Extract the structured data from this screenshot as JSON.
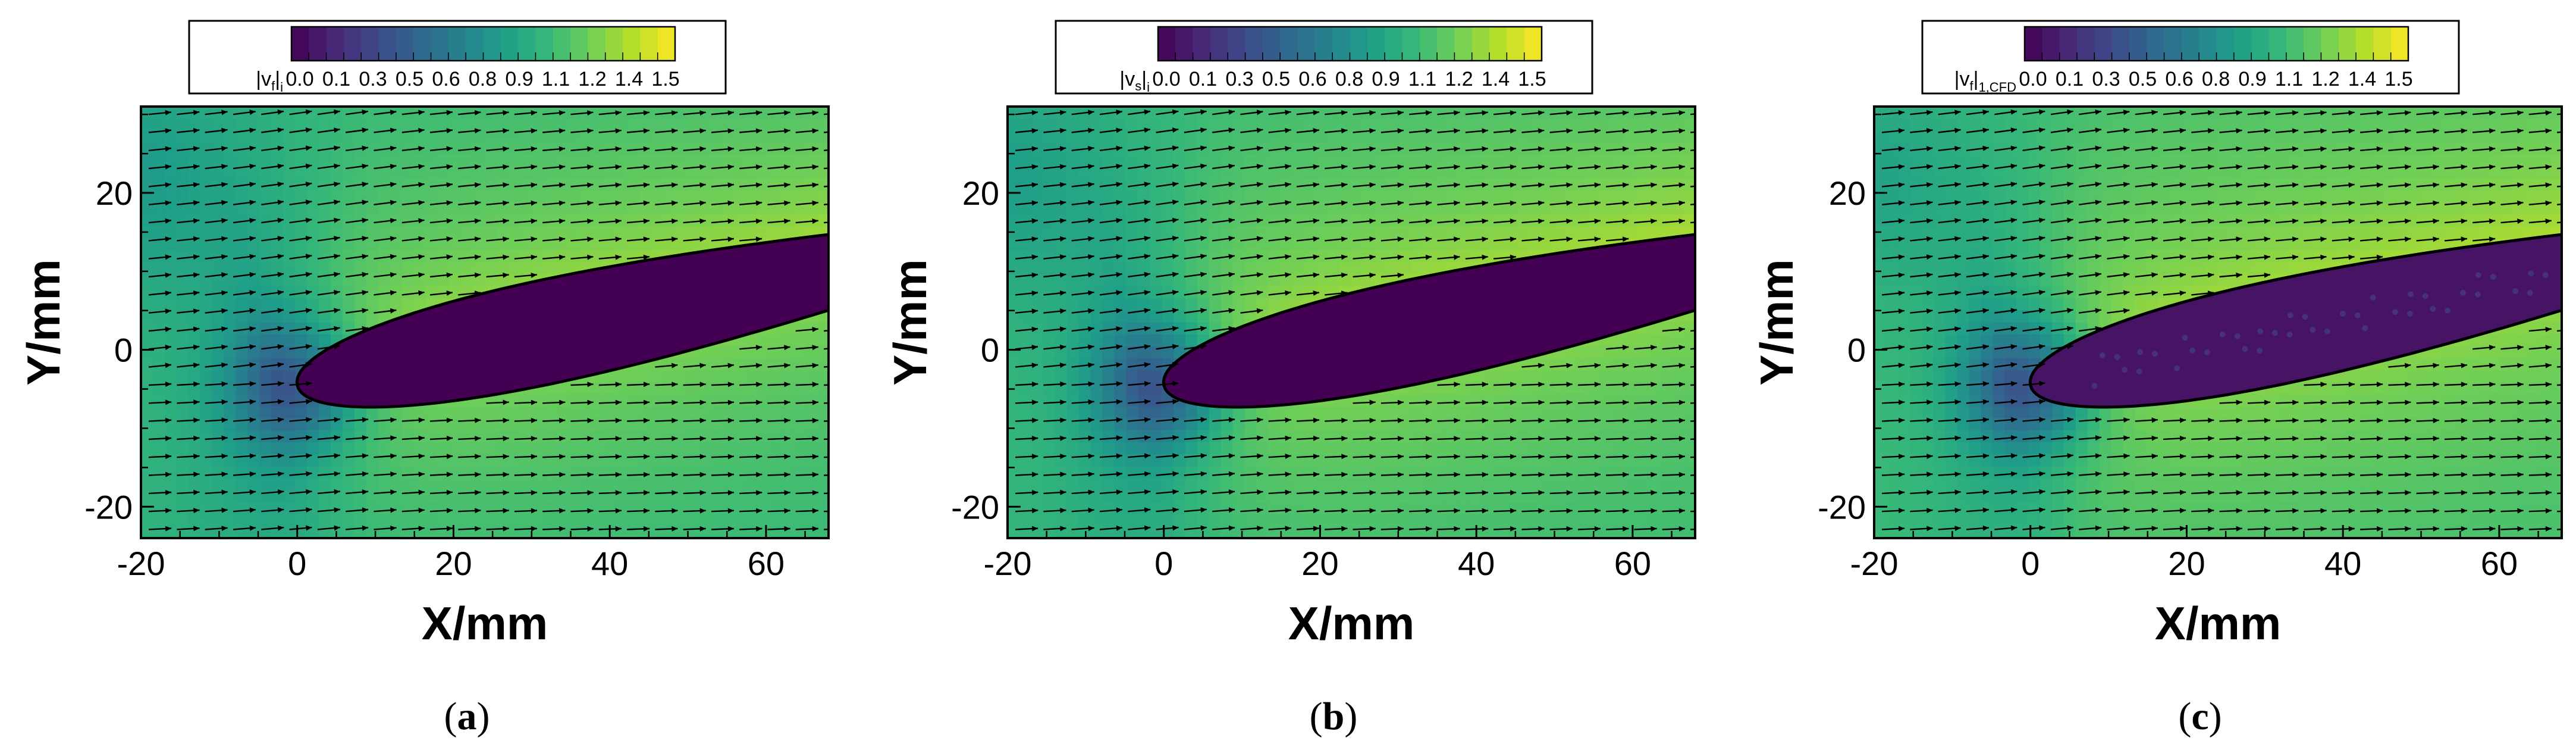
{
  "chart_data": [
    {
      "type": "heatmap",
      "panel": "(a)",
      "caption_letter": "a",
      "colorbar_label_main": "|v",
      "colorbar_label_sub": "f",
      "colorbar_label_tail": "|",
      "colorbar_label_sub2": "i",
      "colorbar_ticks": [
        "0.0",
        "0.1",
        "0.3",
        "0.5",
        "0.6",
        "0.8",
        "0.9",
        "1.1",
        "1.2",
        "1.4",
        "1.5"
      ],
      "colorbar_range": [
        0.0,
        1.55
      ],
      "xlabel": "X/mm",
      "ylabel": "Y/mm",
      "xlim": [
        -20,
        68
      ],
      "ylim": [
        -24,
        31
      ],
      "xticks": [
        -20,
        0,
        20,
        40,
        60
      ],
      "yticks": [
        -20,
        0,
        20
      ],
      "field": {
        "freestream": 1.0,
        "upper_surface_peak": 1.42,
        "stagnation_min": 0.45,
        "airfoil_interior": 0.0
      },
      "airfoil": {
        "leading_edge": [
          0,
          -4.5
        ],
        "chord_angle_deg": 12,
        "visible_chord_mm": 68
      },
      "vector_field": "velocity arrows, uniform spacing",
      "cfd_noise": false
    },
    {
      "type": "heatmap",
      "panel": "(b)",
      "caption_letter": "b",
      "colorbar_label_main": "|v",
      "colorbar_label_sub": "s",
      "colorbar_label_tail": "|",
      "colorbar_label_sub2": "i",
      "colorbar_ticks": [
        "0.0",
        "0.1",
        "0.3",
        "0.5",
        "0.6",
        "0.8",
        "0.9",
        "1.1",
        "1.2",
        "1.4",
        "1.5"
      ],
      "colorbar_range": [
        0.0,
        1.55
      ],
      "xlabel": "X/mm",
      "ylabel": "Y/mm",
      "xlim": [
        -20,
        68
      ],
      "ylim": [
        -24,
        31
      ],
      "xticks": [
        -20,
        0,
        20,
        40,
        60
      ],
      "yticks": [
        -20,
        0,
        20
      ],
      "field": {
        "freestream": 1.02,
        "upper_surface_peak": 1.45,
        "stagnation_min": 0.45,
        "airfoil_interior": 0.0
      },
      "airfoil": {
        "leading_edge": [
          0,
          -4.5
        ],
        "chord_angle_deg": 12,
        "visible_chord_mm": 68
      },
      "vector_field": "velocity arrows, uniform spacing",
      "cfd_noise": false
    },
    {
      "type": "heatmap",
      "panel": "(c)",
      "caption_letter": "c",
      "colorbar_label_main": "|v",
      "colorbar_label_sub": "f",
      "colorbar_label_tail": "|",
      "colorbar_label_sub2": "1,CFD",
      "colorbar_ticks": [
        "0.0",
        "0.1",
        "0.3",
        "0.5",
        "0.6",
        "0.8",
        "0.9",
        "1.1",
        "1.2",
        "1.4",
        "1.5"
      ],
      "colorbar_range": [
        0.0,
        1.55
      ],
      "xlabel": "X/mm",
      "ylabel": "Y/mm",
      "xlim": [
        -20,
        68
      ],
      "ylim": [
        -24,
        31
      ],
      "xticks": [
        -20,
        0,
        20,
        40,
        60
      ],
      "yticks": [
        -20,
        0,
        20
      ],
      "field": {
        "freestream": 1.05,
        "upper_surface_peak": 1.45,
        "stagnation_min": 0.45,
        "airfoil_interior": 0.08
      },
      "airfoil": {
        "leading_edge": [
          0,
          -4.5
        ],
        "chord_angle_deg": 12,
        "visible_chord_mm": 68
      },
      "vector_field": "velocity arrows, uniform spacing",
      "cfd_noise": true
    }
  ],
  "colors": {
    "viridis_stops": [
      "#440154",
      "#482878",
      "#3e4989",
      "#31688e",
      "#26828e",
      "#1f9e89",
      "#35b779",
      "#6ece58",
      "#b5de2b",
      "#fde725"
    ],
    "arrow": "#000000",
    "airfoil_outline": "#000000"
  }
}
